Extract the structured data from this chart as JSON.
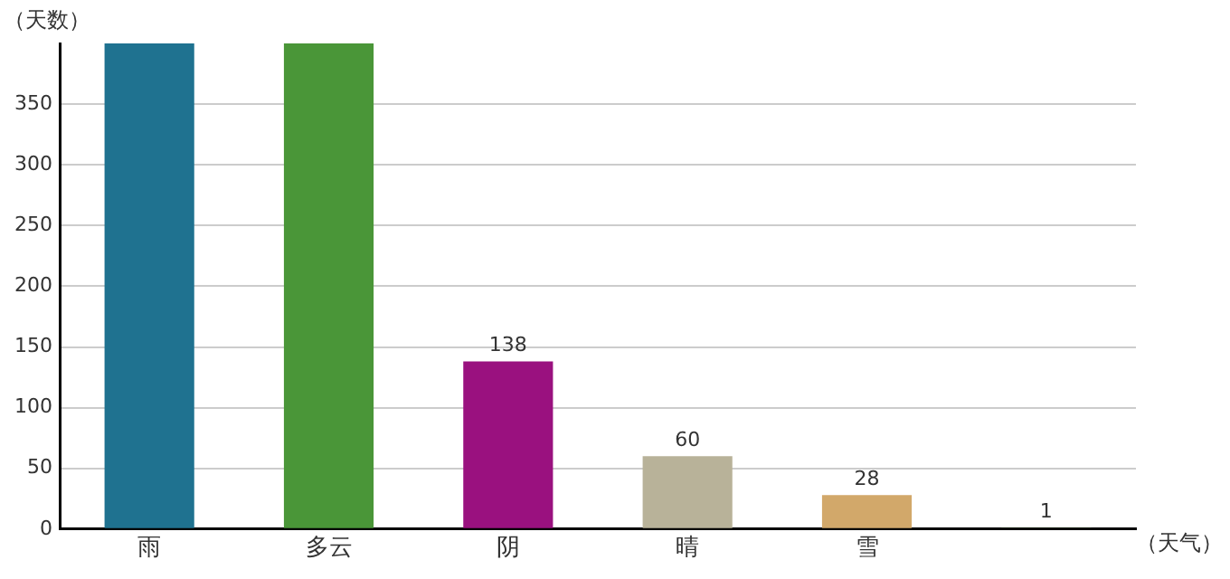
{
  "chart_data": {
    "type": "bar",
    "xlabel": "（天气）",
    "ylabel": "（天数）",
    "categories": [
      "雨",
      "多云",
      "阴",
      "晴",
      "雪",
      null
    ],
    "values": [
      400,
      400,
      138,
      60,
      28,
      1
    ],
    "colors": [
      "#1f7290",
      "#4a9638",
      "#9a117f",
      "#b8b299",
      "#d2a86a",
      "#2e5a16"
    ],
    "value_labels": [
      null,
      null,
      "138",
      "60",
      "28",
      "1"
    ],
    "ylim": [
      0,
      400
    ],
    "yticks": [
      0,
      50,
      100,
      150,
      200,
      250,
      300,
      350
    ],
    "grid": "y",
    "legend": false
  }
}
